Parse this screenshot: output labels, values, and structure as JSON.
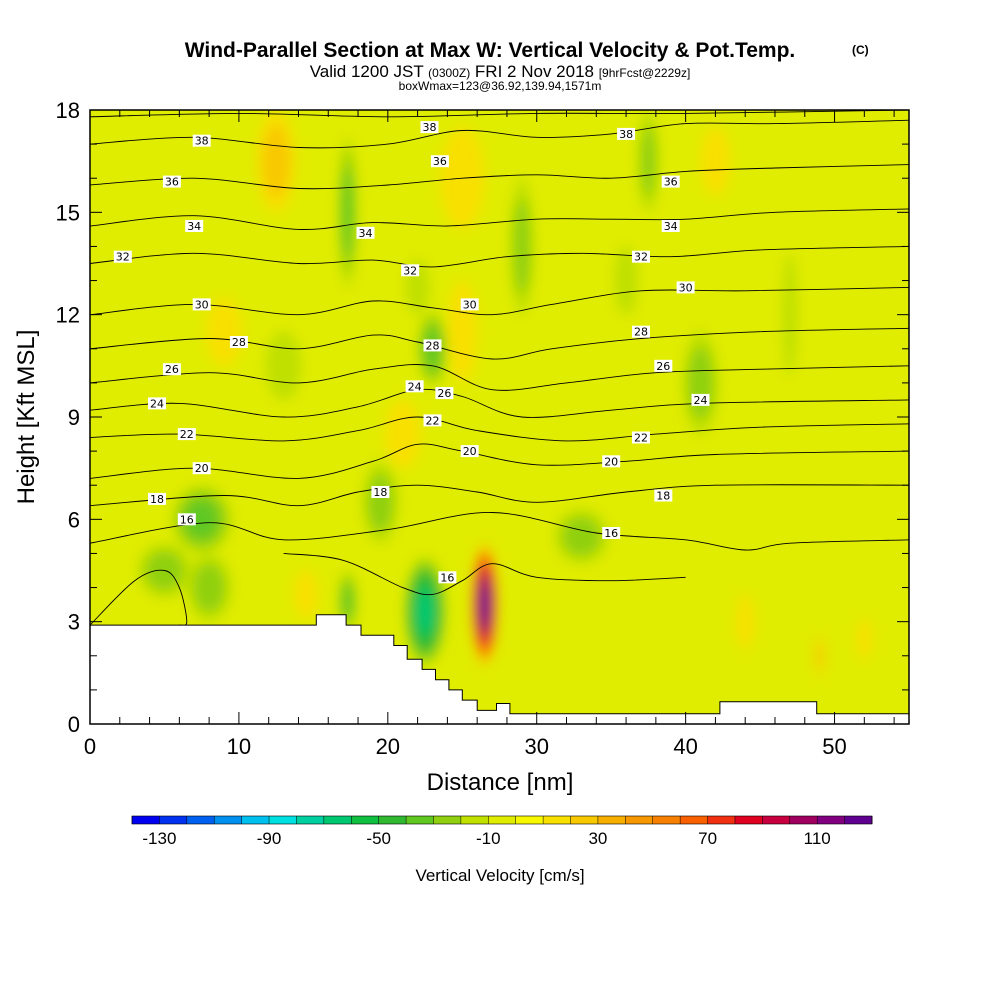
{
  "chart_data": {
    "type": "heatmap",
    "title": "Wind-Parallel Section at Max W: Vertical Velocity & Pot.Temp.",
    "title_mark": "(C)",
    "subtitle_parts": [
      "Valid 1200 JST ",
      "(0300Z)",
      " FRI 2 Nov 2018 ",
      "[9hrFcst@2229z]"
    ],
    "subtitle2": "boxWmax=123@36.92,139.94,1571m",
    "xlabel": "Distance [nm]",
    "ylabel": "Height [Kft MSL]",
    "xlim": [
      0,
      55
    ],
    "ylim": [
      0,
      18
    ],
    "x_ticks": [
      0,
      10,
      20,
      30,
      40,
      50
    ],
    "y_ticks": [
      0,
      3,
      6,
      9,
      12,
      15,
      18
    ],
    "colorbar": {
      "label": "Vertical Velocity [cm/s]",
      "range": [
        -140,
        130
      ],
      "step": 10,
      "tick_values": [
        -130,
        -90,
        -50,
        -10,
        30,
        70,
        110
      ],
      "tick_labels": [
        "-130",
        "-90",
        "-50",
        "-10",
        "30",
        "70",
        "110"
      ],
      "colors": [
        "#0000f0",
        "#0030f0",
        "#0060f0",
        "#0090f0",
        "#00c0f0",
        "#00e0e0",
        "#00d0a0",
        "#00c870",
        "#10c040",
        "#30b830",
        "#60c820",
        "#90d010",
        "#c0e000",
        "#e0ec00",
        "#f8f800",
        "#f8e000",
        "#f8c800",
        "#f8b000",
        "#f89800",
        "#f88000",
        "#f86000",
        "#f03010",
        "#e00020",
        "#c80040",
        "#a00060",
        "#800080",
        "#600090"
      ]
    },
    "velocity_features": [
      {
        "x": 26.5,
        "y": 3.5,
        "peak": 123,
        "sx": 0.9,
        "sy": 1.8
      },
      {
        "x": 22.5,
        "y": 3.3,
        "peak": -60,
        "sx": 1.4,
        "sy": 1.6
      },
      {
        "x": 17.3,
        "y": 3.6,
        "peak": -30,
        "sx": 0.6,
        "sy": 0.9
      },
      {
        "x": 19.5,
        "y": 6.5,
        "peak": -20,
        "sx": 1.2,
        "sy": 1.2
      },
      {
        "x": 7.5,
        "y": 6.0,
        "peak": -30,
        "sx": 2.0,
        "sy": 1.0
      },
      {
        "x": 5.0,
        "y": 4.5,
        "peak": -20,
        "sx": 1.8,
        "sy": 0.8
      },
      {
        "x": 8.0,
        "y": 4.0,
        "peak": -25,
        "sx": 1.5,
        "sy": 1.0
      },
      {
        "x": 23.0,
        "y": 11.0,
        "peak": -30,
        "sx": 1.0,
        "sy": 1.1
      },
      {
        "x": 22.0,
        "y": 12.8,
        "peak": -15,
        "sx": 0.8,
        "sy": 0.8
      },
      {
        "x": 17.3,
        "y": 15.0,
        "peak": -30,
        "sx": 0.6,
        "sy": 2.2
      },
      {
        "x": 29.0,
        "y": 14.0,
        "peak": -20,
        "sx": 0.8,
        "sy": 2.0
      },
      {
        "x": 33.0,
        "y": 5.5,
        "peak": -20,
        "sx": 1.8,
        "sy": 0.8
      },
      {
        "x": 37.5,
        "y": 16.5,
        "peak": -20,
        "sx": 0.7,
        "sy": 1.5
      },
      {
        "x": 41.0,
        "y": 10.0,
        "peak": -25,
        "sx": 1.2,
        "sy": 1.5
      },
      {
        "x": 13.0,
        "y": 10.5,
        "peak": -15,
        "sx": 1.2,
        "sy": 1.0
      },
      {
        "x": 12.5,
        "y": 16.5,
        "peak": 20,
        "sx": 1.3,
        "sy": 1.5
      },
      {
        "x": 25.0,
        "y": 16.0,
        "peak": 15,
        "sx": 1.5,
        "sy": 1.5
      },
      {
        "x": 42.0,
        "y": 16.5,
        "peak": 15,
        "sx": 1.0,
        "sy": 1.0
      },
      {
        "x": 25.0,
        "y": 11.5,
        "peak": 15,
        "sx": 1.0,
        "sy": 1.5
      },
      {
        "x": 14.5,
        "y": 3.8,
        "peak": 12,
        "sx": 0.8,
        "sy": 0.7
      },
      {
        "x": 21.0,
        "y": 8.5,
        "peak": 12,
        "sx": 1.2,
        "sy": 1.0
      },
      {
        "x": 9.0,
        "y": 11.5,
        "peak": 12,
        "sx": 1.2,
        "sy": 1.0
      },
      {
        "x": 49.0,
        "y": 2.0,
        "peak": 20,
        "sx": 0.3,
        "sy": 0.6
      },
      {
        "x": 52.0,
        "y": 2.5,
        "peak": 15,
        "sx": 0.5,
        "sy": 0.6
      },
      {
        "x": 44.0,
        "y": 3.0,
        "peak": 12,
        "sx": 0.6,
        "sy": 0.8
      },
      {
        "x": 47.0,
        "y": 12.0,
        "peak": -15,
        "sx": 0.5,
        "sy": 1.8
      },
      {
        "x": 36.0,
        "y": 13.0,
        "peak": -12,
        "sx": 0.8,
        "sy": 1.0
      }
    ],
    "terrain_kft": [
      [
        0,
        2.9
      ],
      [
        15.2,
        2.9
      ],
      [
        15.2,
        3.2
      ],
      [
        17.2,
        3.2
      ],
      [
        17.2,
        2.9
      ],
      [
        18.2,
        2.9
      ],
      [
        18.2,
        2.6
      ],
      [
        20.4,
        2.6
      ],
      [
        20.4,
        2.3
      ],
      [
        21.3,
        2.3
      ],
      [
        21.3,
        1.9
      ],
      [
        22.3,
        1.9
      ],
      [
        22.3,
        1.6
      ],
      [
        23.2,
        1.6
      ],
      [
        23.2,
        1.3
      ],
      [
        24.1,
        1.3
      ],
      [
        24.1,
        1.0
      ],
      [
        25.0,
        1.0
      ],
      [
        25.0,
        0.7
      ],
      [
        26.0,
        0.7
      ],
      [
        26.0,
        0.4
      ],
      [
        27.3,
        0.4
      ],
      [
        27.3,
        0.6
      ],
      [
        28.2,
        0.6
      ],
      [
        28.2,
        0.3
      ],
      [
        42.3,
        0.3
      ],
      [
        42.3,
        0.65
      ],
      [
        48.8,
        0.65
      ],
      [
        48.8,
        0.3
      ],
      [
        55,
        0.3
      ]
    ],
    "theta_contours": [
      {
        "label": "16",
        "pts": [
          [
            0,
            5.3
          ],
          [
            8,
            5.9
          ],
          [
            13,
            5.4
          ],
          [
            20,
            5.7
          ],
          [
            27,
            6.2
          ],
          [
            34,
            5.6
          ],
          [
            40,
            5.4
          ],
          [
            44,
            5.1
          ],
          [
            47,
            5.3
          ],
          [
            55,
            5.4
          ]
        ],
        "label_pos": [
          [
            6.5,
            6.0
          ],
          [
            35.0,
            5.6
          ]
        ]
      },
      {
        "label": "16",
        "pts": [
          [
            13,
            5.0
          ],
          [
            17,
            4.8
          ],
          [
            21,
            4.0
          ],
          [
            23,
            3.8
          ],
          [
            25,
            4.2
          ],
          [
            27,
            4.7
          ],
          [
            30,
            4.3
          ],
          [
            35,
            4.2
          ],
          [
            40,
            4.3
          ]
        ],
        "label_pos": [
          [
            24.0,
            4.3
          ]
        ]
      },
      {
        "label": "18",
        "pts": [
          [
            0,
            6.4
          ],
          [
            9,
            6.7
          ],
          [
            14,
            6.4
          ],
          [
            18,
            6.8
          ],
          [
            22,
            7.0
          ],
          [
            26,
            6.8
          ],
          [
            30,
            6.5
          ],
          [
            36,
            6.8
          ],
          [
            42,
            7.0
          ],
          [
            55,
            7.0
          ]
        ],
        "label_pos": [
          [
            4.5,
            6.6
          ],
          [
            19.5,
            6.8
          ],
          [
            38.5,
            6.7
          ]
        ]
      },
      {
        "label": "20",
        "pts": [
          [
            0,
            7.2
          ],
          [
            7,
            7.5
          ],
          [
            14,
            7.2
          ],
          [
            19,
            7.7
          ],
          [
            22,
            8.2
          ],
          [
            25,
            8.0
          ],
          [
            30,
            7.6
          ],
          [
            36,
            7.7
          ],
          [
            42,
            7.9
          ],
          [
            55,
            8.0
          ]
        ],
        "label_pos": [
          [
            7.5,
            7.5
          ],
          [
            25.5,
            8.0
          ],
          [
            35.0,
            7.7
          ]
        ]
      },
      {
        "label": "22",
        "pts": [
          [
            0,
            8.4
          ],
          [
            6,
            8.5
          ],
          [
            13,
            8.3
          ],
          [
            18,
            8.6
          ],
          [
            22,
            9.0
          ],
          [
            26,
            8.6
          ],
          [
            32,
            8.3
          ],
          [
            38,
            8.5
          ],
          [
            45,
            8.7
          ],
          [
            55,
            8.8
          ]
        ],
        "label_pos": [
          [
            6.5,
            8.5
          ],
          [
            23.0,
            8.9
          ],
          [
            37.0,
            8.4
          ]
        ]
      },
      {
        "label": "24",
        "pts": [
          [
            0,
            9.2
          ],
          [
            6,
            9.4
          ],
          [
            13,
            9.0
          ],
          [
            18,
            9.3
          ],
          [
            22,
            9.8
          ],
          [
            25,
            9.6
          ],
          [
            29,
            9.0
          ],
          [
            35,
            9.2
          ],
          [
            41,
            9.4
          ],
          [
            55,
            9.5
          ]
        ],
        "label_pos": [
          [
            4.5,
            9.4
          ],
          [
            21.8,
            9.9
          ],
          [
            41.0,
            9.5
          ]
        ]
      },
      {
        "label": "26",
        "pts": [
          [
            0,
            10.0
          ],
          [
            8,
            10.3
          ],
          [
            14,
            10.0
          ],
          [
            19,
            10.4
          ],
          [
            23,
            10.5
          ],
          [
            27,
            9.8
          ],
          [
            32,
            10.0
          ],
          [
            38,
            10.3
          ],
          [
            45,
            10.4
          ],
          [
            55,
            10.5
          ]
        ],
        "label_pos": [
          [
            5.5,
            10.4
          ],
          [
            23.8,
            9.7
          ],
          [
            38.5,
            10.5
          ]
        ]
      },
      {
        "label": "28",
        "pts": [
          [
            0,
            11.0
          ],
          [
            8,
            11.3
          ],
          [
            14,
            11.0
          ],
          [
            19,
            11.4
          ],
          [
            22,
            11.2
          ],
          [
            27,
            10.7
          ],
          [
            31,
            11.0
          ],
          [
            37,
            11.3
          ],
          [
            45,
            11.5
          ],
          [
            55,
            11.6
          ]
        ],
        "label_pos": [
          [
            10.0,
            11.2
          ],
          [
            23.0,
            11.1
          ],
          [
            37.0,
            11.5
          ]
        ]
      },
      {
        "label": "30",
        "pts": [
          [
            0,
            12.0
          ],
          [
            7,
            12.3
          ],
          [
            14,
            12.0
          ],
          [
            19,
            12.4
          ],
          [
            23,
            12.2
          ],
          [
            27,
            12.0
          ],
          [
            31,
            12.3
          ],
          [
            37,
            12.7
          ],
          [
            44,
            12.7
          ],
          [
            55,
            12.8
          ]
        ],
        "label_pos": [
          [
            7.5,
            12.3
          ],
          [
            25.5,
            12.3
          ],
          [
            40.0,
            12.8
          ]
        ]
      },
      {
        "label": "32",
        "pts": [
          [
            0,
            13.5
          ],
          [
            7,
            13.8
          ],
          [
            14,
            13.5
          ],
          [
            19,
            13.6
          ],
          [
            23,
            13.4
          ],
          [
            28,
            13.7
          ],
          [
            33,
            13.8
          ],
          [
            39,
            13.7
          ],
          [
            45,
            13.9
          ],
          [
            55,
            14.0
          ]
        ],
        "label_pos": [
          [
            2.2,
            13.7
          ],
          [
            21.5,
            13.3
          ],
          [
            37.0,
            13.7
          ]
        ]
      },
      {
        "label": "34",
        "pts": [
          [
            0,
            14.6
          ],
          [
            7,
            14.9
          ],
          [
            14,
            14.5
          ],
          [
            19,
            14.7
          ],
          [
            24,
            14.6
          ],
          [
            30,
            14.8
          ],
          [
            35,
            14.8
          ],
          [
            40,
            14.8
          ],
          [
            46,
            15.0
          ],
          [
            55,
            15.1
          ]
        ],
        "label_pos": [
          [
            7.0,
            14.6
          ],
          [
            18.5,
            14.4
          ],
          [
            39.0,
            14.6
          ]
        ]
      },
      {
        "label": "36",
        "pts": [
          [
            0,
            15.8
          ],
          [
            7,
            16.0
          ],
          [
            14,
            15.7
          ],
          [
            20,
            15.8
          ],
          [
            25,
            16.0
          ],
          [
            30,
            16.1
          ],
          [
            35,
            16.0
          ],
          [
            40,
            16.2
          ],
          [
            46,
            16.3
          ],
          [
            55,
            16.4
          ]
        ],
        "label_pos": [
          [
            5.5,
            15.9
          ],
          [
            23.5,
            16.5
          ],
          [
            39.0,
            15.9
          ]
        ]
      },
      {
        "label": "38",
        "pts": [
          [
            0,
            17.0
          ],
          [
            7,
            17.2
          ],
          [
            14,
            16.9
          ],
          [
            20,
            17.0
          ],
          [
            25,
            17.4
          ],
          [
            30,
            17.2
          ],
          [
            35,
            17.3
          ],
          [
            40,
            17.6
          ],
          [
            46,
            17.6
          ],
          [
            55,
            17.7
          ]
        ],
        "label_pos": [
          [
            7.5,
            17.1
          ],
          [
            22.8,
            17.5
          ],
          [
            36.0,
            17.3
          ]
        ]
      },
      {
        "label": "",
        "pts": [
          [
            0,
            17.8
          ],
          [
            10,
            17.9
          ],
          [
            20,
            17.8
          ],
          [
            30,
            17.9
          ],
          [
            40,
            17.9
          ],
          [
            55,
            18.0
          ]
        ],
        "label_pos": []
      }
    ],
    "closed_contours": [
      {
        "pts": [
          [
            0,
            2.9
          ],
          [
            3,
            4.2
          ],
          [
            5,
            4.5
          ],
          [
            6,
            4.0
          ],
          [
            6.5,
            3.0
          ],
          [
            6,
            2.9
          ]
        ]
      }
    ]
  }
}
